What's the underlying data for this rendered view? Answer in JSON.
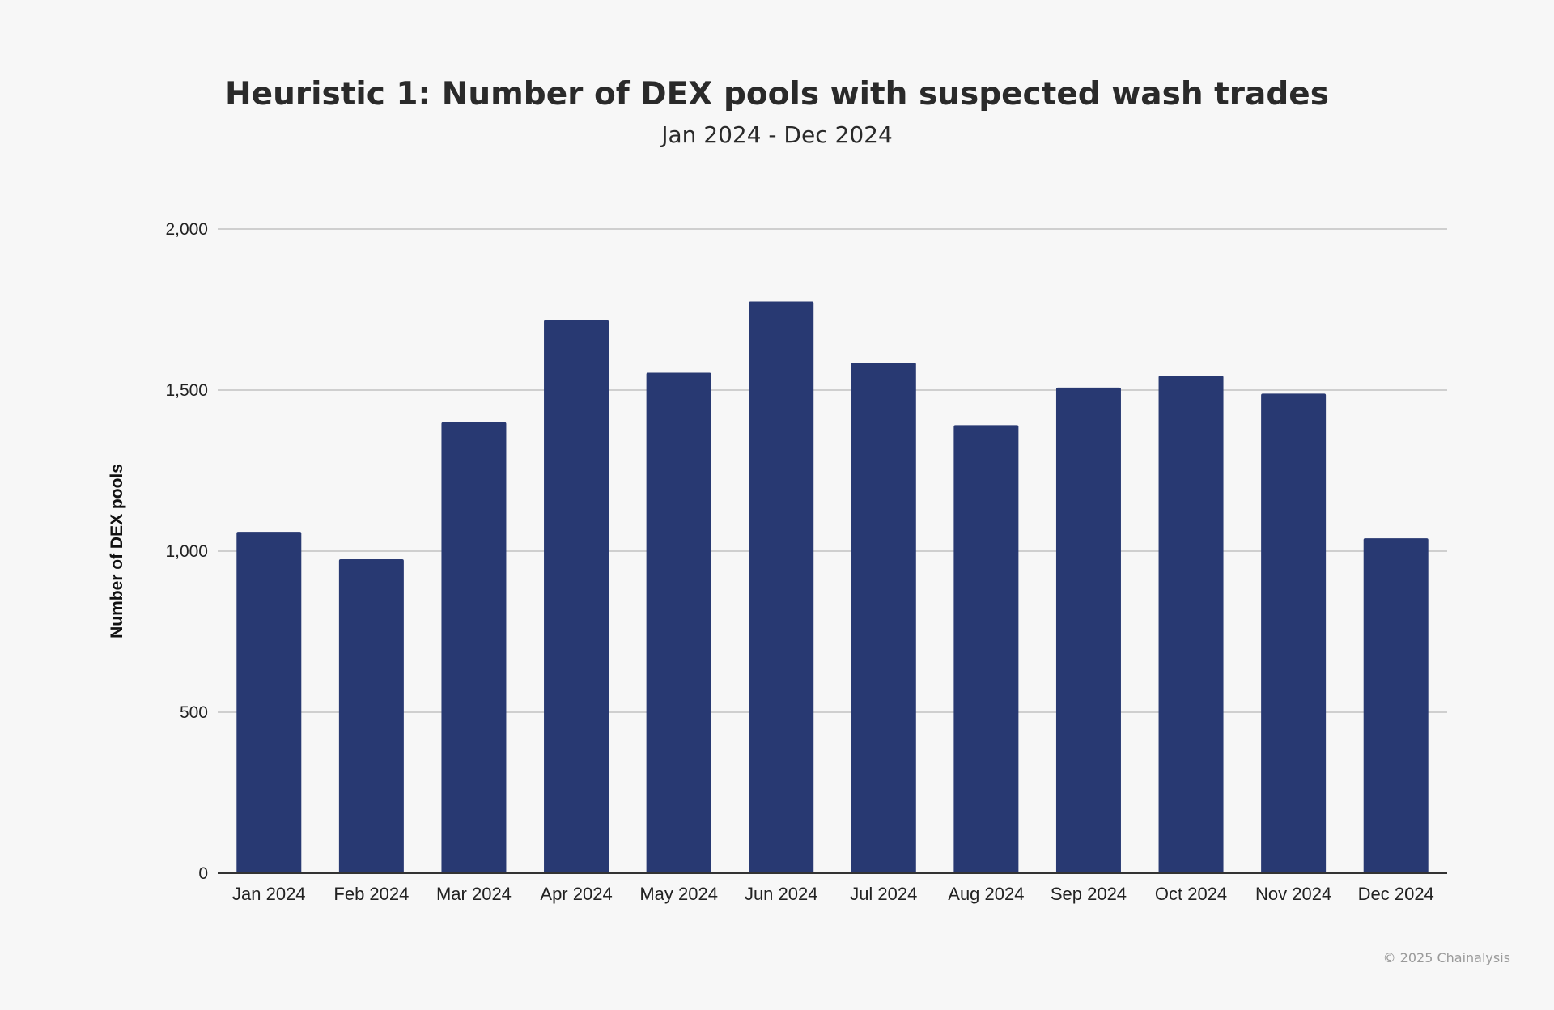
{
  "chart_data": {
    "type": "bar",
    "title": "Heuristic 1: Number of DEX pools with suspected wash trades",
    "subtitle": "Jan 2024 - Dec 2024",
    "xlabel": "",
    "ylabel": "Number of DEX pools",
    "ylim": [
      0,
      2000
    ],
    "yticks": [
      0,
      500,
      1000,
      1500,
      2000
    ],
    "ytick_labels": [
      "0",
      "500",
      "1,000",
      "1,500",
      "2,000"
    ],
    "grid": true,
    "categories": [
      "Jan 2024",
      "Feb 2024",
      "Mar 2024",
      "Apr 2024",
      "May 2024",
      "Jun 2024",
      "Jul 2024",
      "Aug 2024",
      "Sep 2024",
      "Oct 2024",
      "Nov 2024",
      "Dec 2024"
    ],
    "values": [
      1060,
      975,
      1400,
      1717,
      1554,
      1775,
      1585,
      1391,
      1508,
      1545,
      1489,
      1040
    ],
    "bar_color": "#283972"
  },
  "footer": "© 2025 Chainalysis"
}
